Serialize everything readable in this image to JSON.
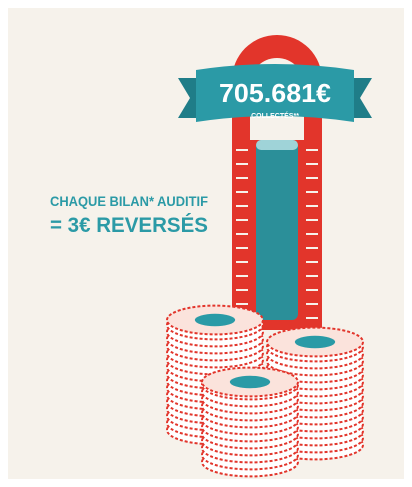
{
  "banner": {
    "amount": "705.681€",
    "caption": "COLLECTÉS**"
  },
  "message": {
    "line1": "CHAQUE BILAN* AUDITIF",
    "line2": "= 3€ REVERSÉS"
  }
}
